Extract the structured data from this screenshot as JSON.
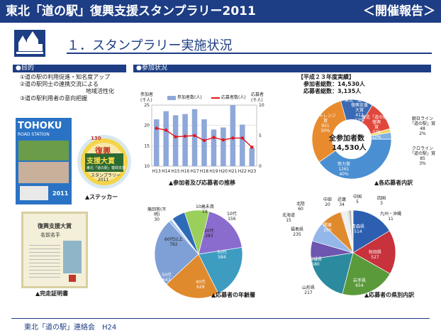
{
  "header": {
    "title": "東北「道の駅」復興支援スタンプラリー2011",
    "report": "＜開催報告＞"
  },
  "section": {
    "title": "１．スタンプラリー実施状況"
  },
  "purpose": {
    "heading": "●目的",
    "items": [
      "①道の駅の利用促進・知名度アップ",
      "②道の駅同士の連携交流による",
      "地域活性化",
      "③道の駅利用者の意向把握"
    ]
  },
  "participation": {
    "heading": "●参加状況"
  },
  "pamphlet": {
    "t1": "TOHOKU",
    "t2": "ROAD STATION",
    "t3": "2011"
  },
  "sticker": {
    "caption": "▲ステッカー",
    "l1": "復興",
    "l2": "支援大賞",
    "l3": "東北「道の駅」復興支援",
    "l4": "スタンプラリー",
    "l5": "2011",
    "l6": "130"
  },
  "certificate": {
    "caption": "▲完走証明書",
    "title": "復興支援大賞",
    "name": "名前名手"
  },
  "chart1": {
    "caption": "▲参加者及び応募者の推移",
    "left_unit1": "参加者",
    "left_unit2": "(千人)",
    "right_unit1": "応募者",
    "right_unit2": "(千人)",
    "legend_bar": "参加者数(人)",
    "legend_line": "応募者数(人)",
    "y_left_ticks": [
      "25",
      "20",
      "15",
      "10"
    ],
    "y_right_ticks": [
      "10",
      "5",
      "0"
    ]
  },
  "summary": {
    "heading": "【平成２３年度実績】",
    "line1": "参加者総数：14,530人",
    "line2": "応募者総数：3,135人"
  },
  "chart2": {
    "caption": "▲各応募者内訳",
    "center1": "全参加者数",
    "center2": "14,530人",
    "labels": {
      "challenge": [
        "チャレンジ",
        "賞",
        "951",
        "30%"
      ],
      "kessei": [
        "東北「道の駅」",
        "復興支援",
        "大賞",
        "412",
        "13%"
      ],
      "fukko": [
        "東北「道の駅」",
        "復興",
        "賞",
        "378",
        "12%"
      ],
      "asahi": [
        "朝日ライン",
        "「道の駅」賞",
        "48",
        "2%"
      ],
      "kuro": [
        "クロライン",
        "「道の駅」賞",
        "85",
        "3%"
      ],
      "doryoku": [
        "努力賞",
        "1261",
        "40%"
      ]
    }
  },
  "chart3": {
    "caption": "▲応募者の年齢層",
    "labels": {
      "unknown": [
        "無回答(不",
        "明)",
        "30"
      ],
      "u10": [
        "10歳未満",
        "19"
      ],
      "s10": [
        "10代",
        "156"
      ],
      "s20": [
        "20代",
        "283"
      ],
      "s30": [
        "30代",
        "584"
      ],
      "s40": [
        "40代",
        "628"
      ],
      "s50": [
        "50代",
        "643"
      ],
      "s60": [
        "60代以上",
        "792"
      ]
    }
  },
  "chart4": {
    "caption": "▲応募者の県別内訳",
    "labels": {
      "hokuriku": [
        "北陸",
        "60"
      ],
      "chubu": [
        "中部",
        "20"
      ],
      "kinki": [
        "近畿",
        "34"
      ],
      "chugoku": [
        "中国",
        "5"
      ],
      "shikoku": [
        "四国",
        "3"
      ],
      "kyushu": [
        "九州・沖縄",
        "11"
      ],
      "hokkaido": [
        "北海道",
        "15"
      ],
      "fukushima": [
        "福島県",
        "235"
      ],
      "kanto": [
        "関東",
        "260"
      ],
      "aomori": [
        "青森県",
        "514"
      ],
      "akita": [
        "秋田県",
        "527"
      ],
      "miyagi": [
        "宮城県",
        "580"
      ],
      "iwate": [
        "岩手県",
        "654"
      ],
      "yamagata": [
        "山形県",
        "217"
      ]
    }
  },
  "footer": {
    "text": "東北「道の駅」連絡会　H24"
  },
  "chart_data": [
    {
      "type": "bar",
      "categories": [
        "H13",
        "H14",
        "H15",
        "H16",
        "H17",
        "H18",
        "H19",
        "H20",
        "H21",
        "H22",
        "H23"
      ],
      "series": [
        {
          "name": "参加者数(人)",
          "values": [
            21.5,
            23.5,
            22.5,
            22.8,
            24,
            21.5,
            19,
            19.5,
            25,
            20.2,
            14.5
          ]
        },
        {
          "name": "応募者数(人)",
          "values": [
            6.2,
            5.9,
            4.8,
            4.9,
            5,
            4.2,
            4.7,
            4.3,
            4.6,
            4.6,
            3.1
          ]
        }
      ],
      "ylim_left": [
        10,
        25
      ],
      "ylim_right": [
        0,
        10
      ]
    },
    {
      "type": "pie",
      "categories": [
        "努力賞",
        "チャレンジ賞",
        "東北「道の駅」復興支援大賞",
        "東北「道の駅」復興賞",
        "朝日ライン「道の駅」賞",
        "クロライン「道の駅」賞"
      ],
      "values": [
        1261,
        951,
        412,
        378,
        48,
        85
      ]
    },
    {
      "type": "pie",
      "categories": [
        "無回答(不明)",
        "10歳未満",
        "10代",
        "20代",
        "30代",
        "40代",
        "50代",
        "60代以上"
      ],
      "values": [
        30,
        19,
        156,
        283,
        584,
        628,
        643,
        792
      ]
    },
    {
      "type": "pie",
      "categories": [
        "青森県",
        "秋田県",
        "岩手県",
        "宮城県",
        "山形県",
        "福島県",
        "関東",
        "北海道",
        "北陸",
        "中部",
        "近畿",
        "中国",
        "四国",
        "九州・沖縄"
      ],
      "values": [
        514,
        527,
        654,
        580,
        217,
        235,
        260,
        15,
        60,
        20,
        34,
        5,
        3,
        11
      ]
    }
  ]
}
